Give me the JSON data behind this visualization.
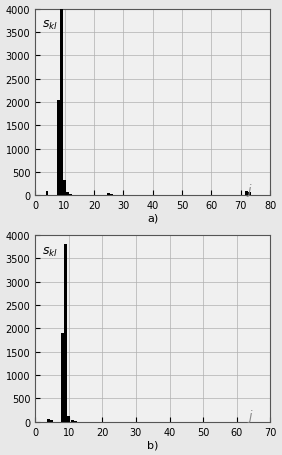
{
  "subplot_a": {
    "xlim": [
      0,
      80
    ],
    "ylim": [
      0,
      4000
    ],
    "xticks": [
      0,
      10,
      20,
      30,
      40,
      50,
      60,
      70,
      80
    ],
    "yticks": [
      0,
      500,
      1000,
      1500,
      2000,
      2500,
      3000,
      3500,
      4000
    ],
    "bars": {
      "x": [
        4,
        8,
        9,
        10,
        11,
        12,
        25,
        26,
        72,
        73
      ],
      "height": [
        100,
        2050,
        4000,
        330,
        70,
        30,
        50,
        20,
        100,
        70
      ]
    },
    "j_x": 73,
    "j_y": 130,
    "label": "a)"
  },
  "subplot_b": {
    "xlim": [
      0,
      70
    ],
    "ylim": [
      0,
      4000
    ],
    "xticks": [
      0,
      10,
      20,
      30,
      40,
      50,
      60,
      70
    ],
    "yticks": [
      0,
      500,
      1000,
      1500,
      2000,
      2500,
      3000,
      3500,
      4000
    ],
    "bars": {
      "x": [
        4,
        5,
        8,
        9,
        10,
        11,
        12
      ],
      "height": [
        70,
        30,
        1900,
        3800,
        130,
        30,
        15
      ]
    },
    "j_x": 64,
    "j_y": 130,
    "label": "b)"
  },
  "bar_color": "#000000",
  "bar_width": 0.9,
  "grid_color": "#b0b0b0",
  "bg_color": "#f0f0f0",
  "font_size": 7,
  "label_fontsize": 8,
  "skl_label": "$\\mathit{s}_{kl}$"
}
